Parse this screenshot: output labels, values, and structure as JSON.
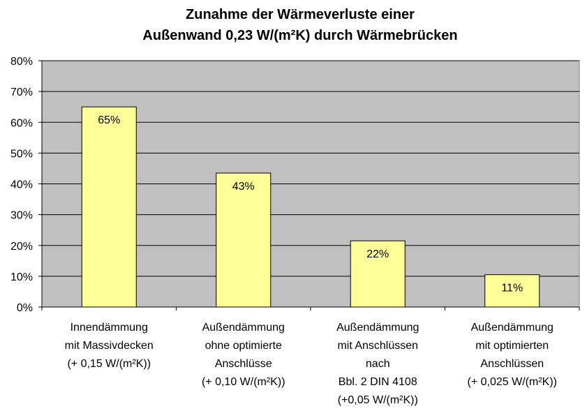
{
  "chart_data": {
    "type": "bar",
    "title_lines": [
      "Zunahme der Wärmeverluste einer",
      "Außenwand 0,23 W/(m²K) durch Wärmebrücken"
    ],
    "xlabel": "",
    "ylabel": "",
    "ylim": [
      0,
      80
    ],
    "y_ticks": [
      "0%",
      "10%",
      "20%",
      "30%",
      "40%",
      "50%",
      "60%",
      "70%",
      "80%"
    ],
    "grid": true,
    "legend": "none",
    "categories": [
      [
        "Innendämmung",
        "mit Massivdecken",
        "(+ 0,15 W/(m²K))"
      ],
      [
        "Außendämmung",
        "ohne optimierte",
        "Anschlüsse",
        "(+ 0,10 W/(m²K))"
      ],
      [
        "Außendämmung",
        "mit Anschlüssen",
        "nach",
        "Bbl. 2 DIN 4108",
        "(+0,05 W/(m²K))"
      ],
      [
        "Außendämmung",
        "mit optimierten",
        "Anschlüssen",
        "(+ 0,025 W/(m²K))"
      ]
    ],
    "values": [
      65,
      43.5,
      21.5,
      10.5
    ],
    "data_labels": [
      "65%",
      "43%",
      "22%",
      "11%"
    ],
    "colors": {
      "plot_background": "#c0c0c0",
      "bar_fill": "#ffff99",
      "bar_stroke": "#000000",
      "gridline": "#000000"
    }
  }
}
